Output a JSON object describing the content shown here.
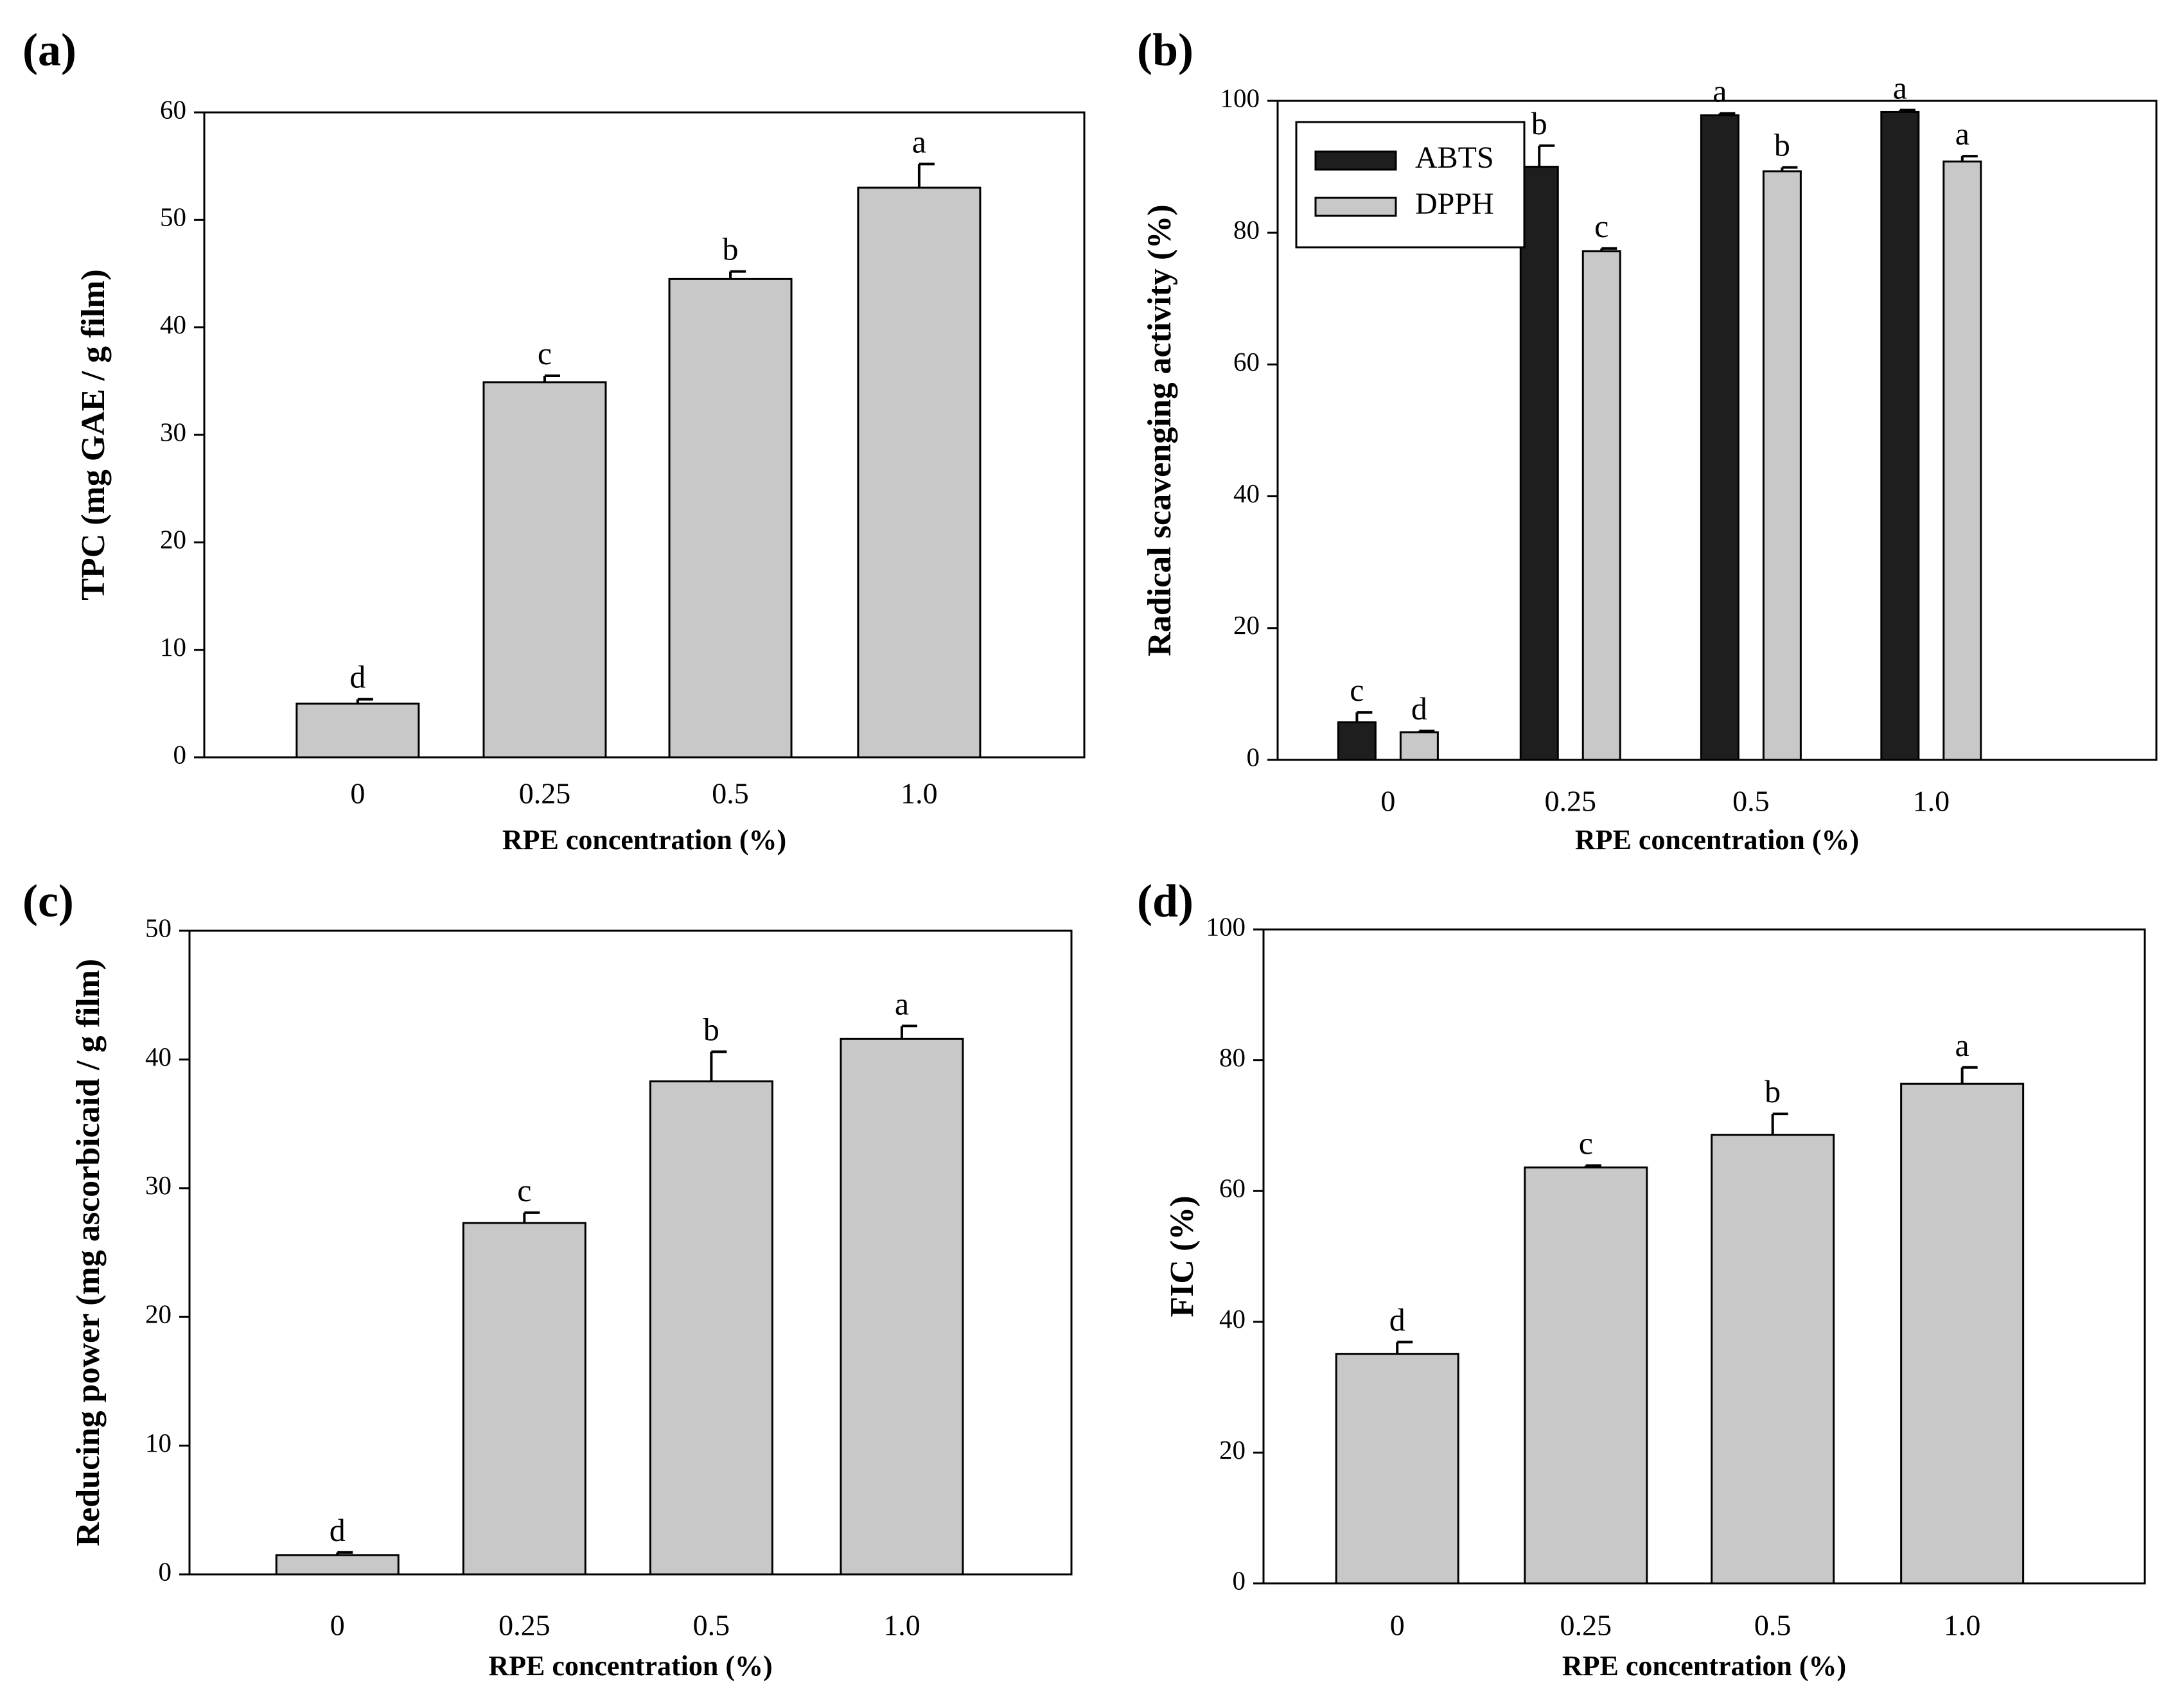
{
  "colors": {
    "bar_light": "#c8c8c8",
    "bar_dark": "#1e1e1e",
    "axis": "#000000"
  },
  "chart_data": [
    {
      "id": "a",
      "panel_label": "(a)",
      "type": "bar",
      "categories": [
        "0",
        "0.25",
        "0.5",
        "1.0"
      ],
      "series": [
        {
          "name": "TPC",
          "color": "#c8c8c8",
          "values": [
            5.0,
            34.9,
            44.5,
            53.0
          ],
          "errors": [
            0.4,
            0.6,
            0.7,
            2.2
          ],
          "letters": [
            "d",
            "c",
            "b",
            "a"
          ]
        }
      ],
      "xlabel": "RPE concentration  (%)",
      "ylabel": "TPC (mg GAE / g film)",
      "ylim": [
        0,
        60
      ],
      "yticks": [
        0,
        10,
        20,
        30,
        40,
        50,
        60
      ],
      "ytick_labels": [
        "0",
        "10",
        "20",
        "30",
        "40",
        "50",
        "60"
      ],
      "legend": null
    },
    {
      "id": "b",
      "panel_label": "(b)",
      "type": "bar",
      "categories": [
        "0",
        "0.25",
        "0.5",
        "1.0"
      ],
      "series": [
        {
          "name": "ABTS",
          "color": "#1e1e1e",
          "values": [
            5.7,
            90.0,
            97.8,
            98.3
          ],
          "errors": [
            1.5,
            3.2,
            0.3,
            0.3
          ],
          "letters": [
            "c",
            "b",
            "a",
            "a"
          ]
        },
        {
          "name": "DPPH",
          "color": "#c8c8c8",
          "values": [
            4.2,
            77.2,
            89.3,
            90.8
          ],
          "errors": [
            0.2,
            0.4,
            0.6,
            0.8
          ],
          "letters": [
            "d",
            "c",
            "b",
            "a"
          ]
        }
      ],
      "xlabel": "RPE concentration  (%)",
      "ylabel": "Radical scavenging activity (%)",
      "ylim": [
        0,
        100
      ],
      "yticks": [
        0,
        20,
        40,
        60,
        80,
        100
      ],
      "ytick_labels": [
        "0",
        "20",
        "40",
        "60",
        "80",
        "100"
      ],
      "legend": {
        "placement": "top-left",
        "entries": [
          "ABTS",
          "DPPH"
        ]
      }
    },
    {
      "id": "c",
      "panel_label": "(c)",
      "type": "bar",
      "categories": [
        "0",
        "0.25",
        "0.5",
        "1.0"
      ],
      "series": [
        {
          "name": "Reducing power",
          "color": "#c8c8c8",
          "values": [
            1.5,
            27.3,
            38.3,
            41.6
          ],
          "errors": [
            0.2,
            0.8,
            2.3,
            1.0
          ],
          "letters": [
            "d",
            "c",
            "b",
            "a"
          ]
        }
      ],
      "xlabel": "RPE concentration  (%)",
      "ylabel": "Reducing power (mg ascorbicaid / g film)",
      "ylim": [
        0,
        50
      ],
      "yticks": [
        0,
        10,
        20,
        30,
        40,
        50
      ],
      "ytick_labels": [
        "0",
        "10",
        "20",
        "30",
        "40",
        "50"
      ],
      "legend": null
    },
    {
      "id": "d",
      "panel_label": "(d)",
      "type": "bar",
      "categories": [
        "0",
        "0.25",
        "0.5",
        "1.0"
      ],
      "series": [
        {
          "name": "FIC",
          "color": "#c8c8c8",
          "values": [
            35.1,
            63.6,
            68.6,
            76.4
          ],
          "errors": [
            1.8,
            0.3,
            3.2,
            2.5
          ],
          "letters": [
            "d",
            "c",
            "b",
            "a"
          ]
        }
      ],
      "xlabel": "RPE concentration  (%)",
      "ylabel": "FIC (%)",
      "ylim": [
        0,
        100
      ],
      "yticks": [
        0,
        20,
        40,
        60,
        80,
        100
      ],
      "ytick_labels": [
        "0",
        "20",
        "40",
        "60",
        "80",
        "100"
      ],
      "legend": null
    }
  ]
}
